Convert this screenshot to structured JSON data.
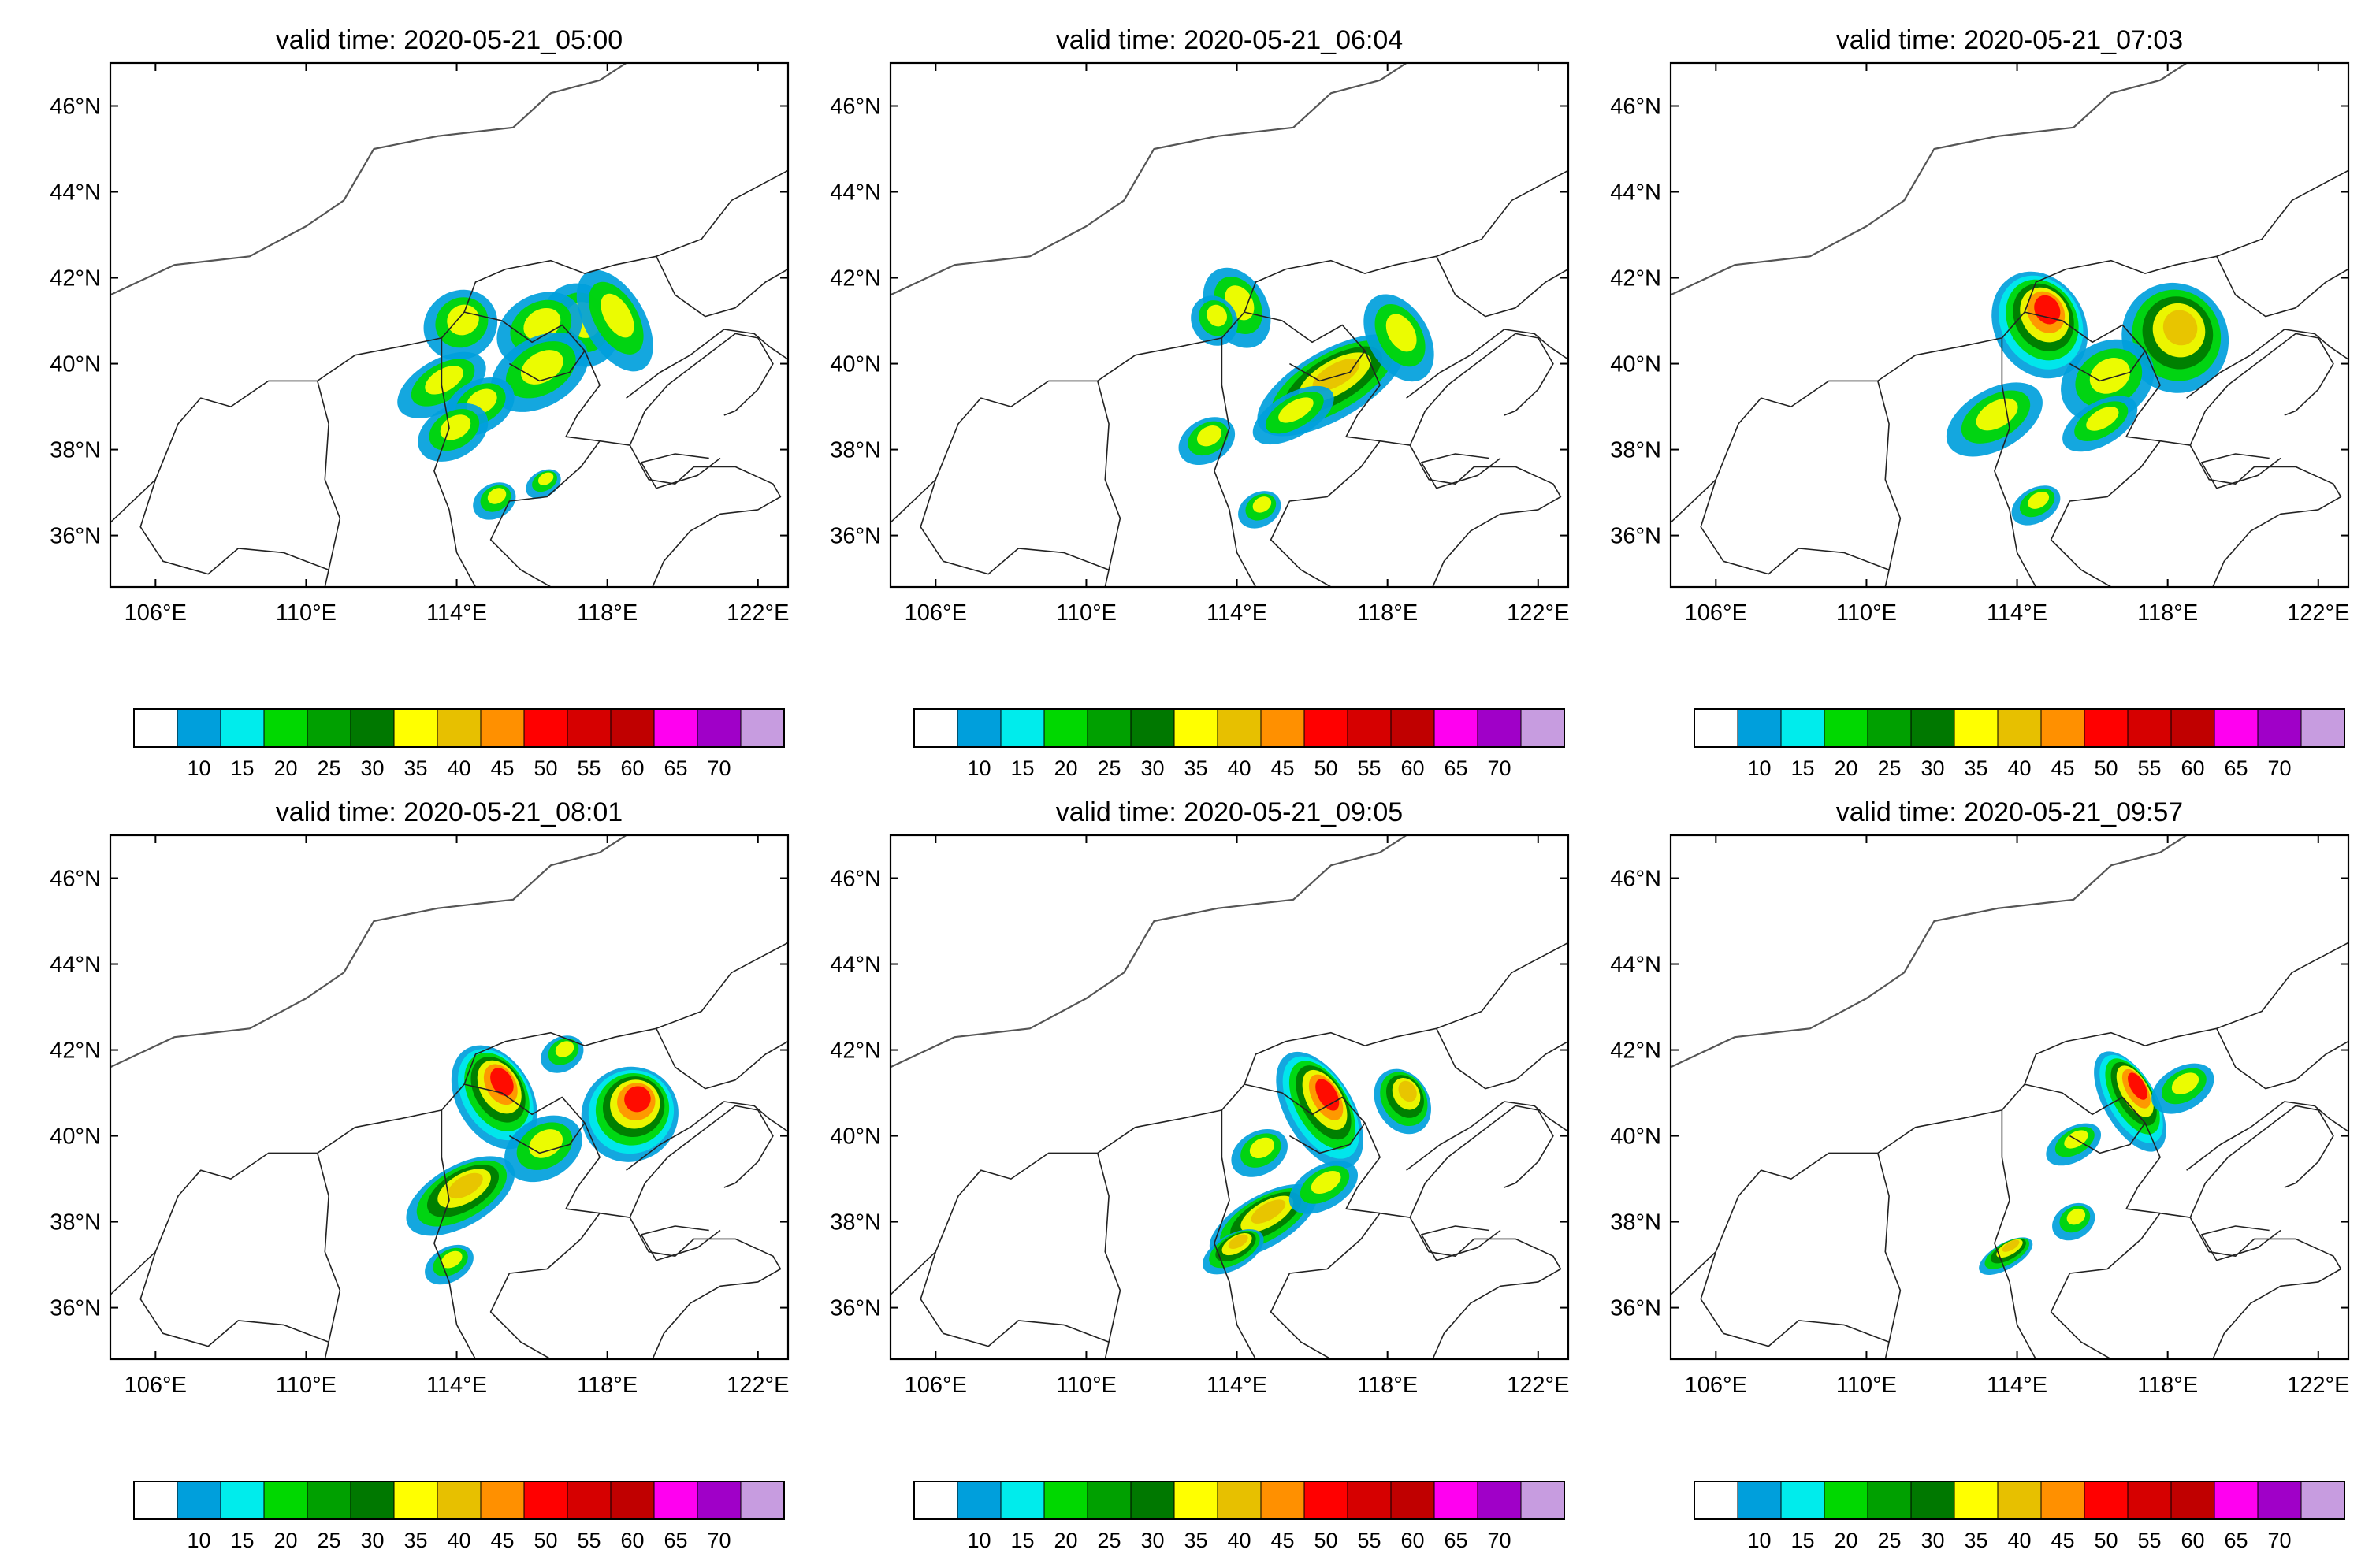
{
  "panels": [
    {
      "title": "valid time: 2020-05-21_05:00",
      "cells": [
        [
          40.9,
          117.3,
          1.0,
          1.0,
          "n"
        ],
        [
          40.9,
          114.1,
          0.8,
          1.0,
          "n"
        ],
        [
          40.8,
          116.2,
          0.8,
          1.2,
          "n"
        ],
        [
          39.8,
          116.2,
          0.8,
          1.4,
          "n"
        ],
        [
          39.5,
          113.6,
          0.6,
          1.3,
          "n"
        ],
        [
          39.0,
          114.6,
          0.6,
          1.0,
          "n"
        ],
        [
          41.0,
          118.2,
          1.3,
          0.8,
          "n"
        ],
        [
          38.4,
          113.9,
          0.6,
          1.0,
          "n"
        ],
        [
          36.8,
          115.0,
          0.4,
          0.6,
          "n"
        ],
        [
          37.2,
          116.3,
          0.3,
          0.5,
          "n"
        ]
      ]
    },
    {
      "title": "valid time: 2020-05-21_06:04",
      "cells": [
        [
          41.3,
          114.0,
          1.0,
          0.8,
          "n"
        ],
        [
          41.0,
          113.4,
          0.6,
          0.6,
          "n"
        ],
        [
          39.5,
          116.5,
          0.8,
          2.2,
          "m"
        ],
        [
          40.6,
          118.3,
          1.1,
          0.8,
          "n"
        ],
        [
          38.2,
          113.2,
          0.5,
          0.8,
          "n"
        ],
        [
          36.6,
          114.6,
          0.4,
          0.6,
          "n"
        ],
        [
          38.8,
          115.5,
          0.5,
          1.2,
          "n"
        ]
      ]
    },
    {
      "title": "valid time: 2020-05-21_07:03",
      "cells": [
        [
          40.9,
          114.6,
          1.3,
          1.2,
          "s"
        ],
        [
          40.6,
          118.2,
          1.3,
          1.4,
          "m"
        ],
        [
          38.7,
          113.4,
          0.7,
          1.4,
          "n"
        ],
        [
          39.6,
          116.4,
          0.9,
          1.3,
          "n"
        ],
        [
          36.7,
          114.5,
          0.4,
          0.7,
          "n"
        ],
        [
          38.6,
          116.2,
          0.5,
          1.1,
          "n"
        ]
      ]
    },
    {
      "title": "valid time: 2020-05-21_08:01",
      "cells": [
        [
          40.9,
          115.0,
          1.3,
          1.0,
          "s"
        ],
        [
          40.5,
          118.6,
          1.1,
          1.3,
          "s"
        ],
        [
          38.6,
          114.1,
          0.7,
          1.6,
          "m"
        ],
        [
          39.7,
          116.3,
          0.7,
          1.1,
          "n"
        ],
        [
          37.0,
          113.8,
          0.4,
          0.7,
          "n"
        ],
        [
          41.9,
          116.8,
          0.4,
          0.6,
          "n"
        ]
      ]
    },
    {
      "title": "valid time: 2020-05-21_09:05",
      "cells": [
        [
          40.6,
          116.2,
          1.5,
          0.9,
          "s"
        ],
        [
          40.8,
          118.4,
          0.8,
          0.7,
          "m"
        ],
        [
          38.0,
          114.7,
          0.6,
          1.6,
          "m"
        ],
        [
          37.3,
          113.9,
          0.4,
          0.9,
          "m"
        ],
        [
          39.6,
          114.6,
          0.5,
          0.8,
          "n"
        ],
        [
          38.8,
          116.3,
          0.5,
          1.0,
          "n"
        ]
      ]
    },
    {
      "title": "valid time: 2020-05-21_09:57",
      "cells": [
        [
          40.8,
          117.0,
          1.3,
          0.7,
          "s"
        ],
        [
          41.1,
          118.4,
          0.5,
          0.9,
          "n"
        ],
        [
          39.8,
          115.5,
          0.4,
          0.8,
          "n"
        ],
        [
          38.0,
          115.5,
          0.4,
          0.6,
          "n"
        ],
        [
          37.2,
          113.7,
          0.3,
          0.8,
          "m"
        ]
      ]
    }
  ],
  "axes": {
    "lat_labels": [
      "46°N",
      "44°N",
      "42°N",
      "40°N",
      "38°N",
      "36°N"
    ],
    "lat_values": [
      46,
      44,
      42,
      40,
      38,
      36
    ],
    "lon_labels": [
      "106°E",
      "110°E",
      "114°E",
      "118°E",
      "122°E"
    ],
    "lon_values": [
      106,
      110,
      114,
      118,
      122
    ]
  },
  "colorbar": {
    "ticks": [
      "10",
      "15",
      "20",
      "25",
      "30",
      "35",
      "40",
      "45",
      "50",
      "55",
      "60",
      "65",
      "70"
    ],
    "colors": [
      "#ffffff",
      "#009fdc",
      "#00ecec",
      "#00d800",
      "#00a000",
      "#007800",
      "#ffff00",
      "#e7c000",
      "#ff9000",
      "#ff0000",
      "#d60000",
      "#c00000",
      "#ff00f0",
      "#a000c8",
      "#c79ce0"
    ]
  }
}
